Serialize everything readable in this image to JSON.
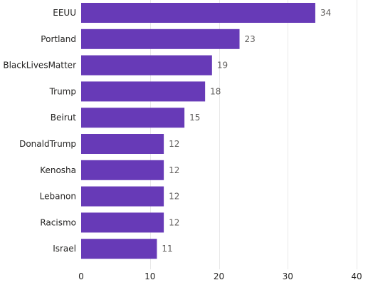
{
  "chart_data": {
    "type": "bar",
    "orientation": "horizontal",
    "categories": [
      "EEUU",
      "Portland",
      "BlackLivesMatter",
      "Trump",
      "Beirut",
      "DonaldTrump",
      "Kenosha",
      "Lebanon",
      "Racismo",
      "Israel"
    ],
    "values": [
      34,
      23,
      19,
      18,
      15,
      12,
      12,
      12,
      12,
      11
    ],
    "x_ticks": [
      0,
      10,
      20,
      30,
      40
    ],
    "xlim": [
      0,
      40
    ],
    "title": "",
    "xlabel": "",
    "ylabel": "",
    "grid": true,
    "data_labels": true,
    "bar_color": "#673ab7"
  }
}
